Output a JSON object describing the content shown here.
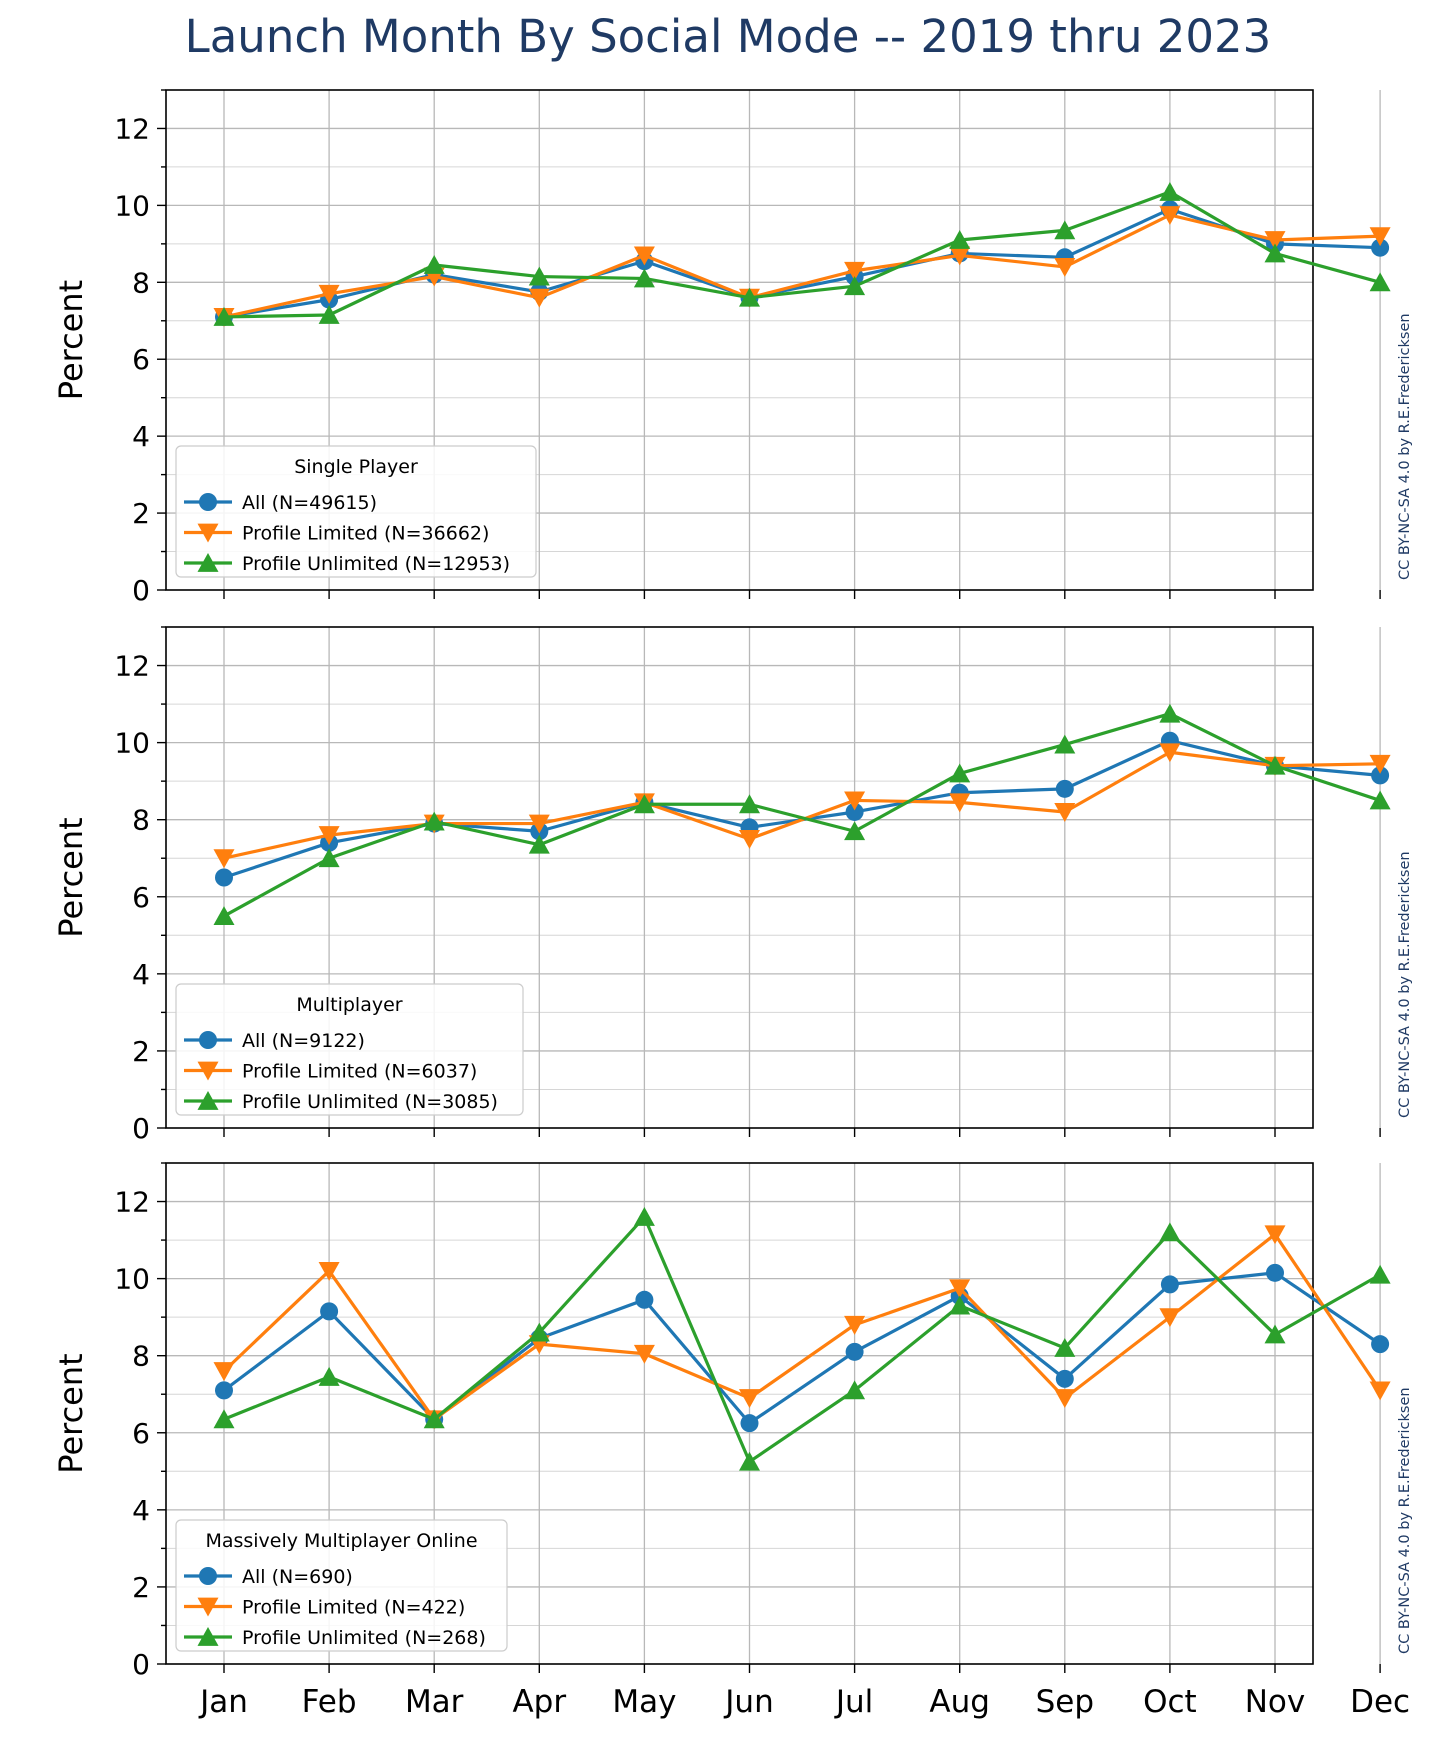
{
  "title": "Launch Month By Social Mode -- 2019 thru 2023",
  "chart_data": {
    "type": "line",
    "title": "Launch Month By Social Mode -- 2019 thru 2023",
    "ylabel": "Percent",
    "ylim": [
      0,
      13
    ],
    "yticks": [
      0,
      2,
      4,
      6,
      8,
      10,
      12
    ],
    "grid": true,
    "legend_placement": "bottom-left",
    "categories": [
      "Jan",
      "Feb",
      "Mar",
      "Apr",
      "May",
      "Jun",
      "Jul",
      "Aug",
      "Sep",
      "Oct",
      "Nov",
      "Dec"
    ],
    "colors": {
      "all": "#1f77b4",
      "limited": "#ff7f0e",
      "unlimited": "#2ca02c",
      "title": "#1f3a64",
      "credit": "#1f3a64"
    },
    "panels": [
      {
        "legend_title": "Single Player",
        "credit": "CC BY-NC-SA 4.0 by R.E.Fredericksen",
        "series": [
          {
            "name": "All (N=49615)",
            "marker": "circle",
            "color": "#1f77b4",
            "values": [
              7.1,
              7.55,
              8.2,
              7.75,
              8.55,
              7.6,
              8.15,
              8.75,
              8.65,
              9.9,
              9.0,
              8.9
            ]
          },
          {
            "name": "Profile Limited (N=36662)",
            "marker": "triangle-down",
            "color": "#ff7f0e",
            "values": [
              7.1,
              7.7,
              8.15,
              7.6,
              8.7,
              7.6,
              8.3,
              8.7,
              8.4,
              9.75,
              9.1,
              9.2
            ]
          },
          {
            "name": "Profile Unlimited (N=12953)",
            "marker": "triangle-up",
            "color": "#2ca02c",
            "values": [
              7.1,
              7.15,
              8.45,
              8.15,
              8.1,
              7.6,
              7.9,
              9.1,
              9.35,
              10.35,
              8.75,
              8.0
            ]
          }
        ]
      },
      {
        "legend_title": "Multiplayer",
        "credit": "CC BY-NC-SA 4.0 by R.E.Fredericksen",
        "series": [
          {
            "name": "All (N=9122)",
            "marker": "circle",
            "color": "#1f77b4",
            "values": [
              6.5,
              7.4,
              7.9,
              7.7,
              8.45,
              7.8,
              8.2,
              8.7,
              8.8,
              10.05,
              9.4,
              9.15
            ]
          },
          {
            "name": "Profile Limited (N=6037)",
            "marker": "triangle-down",
            "color": "#ff7f0e",
            "values": [
              7.0,
              7.6,
              7.9,
              7.9,
              8.45,
              7.5,
              8.5,
              8.45,
              8.2,
              9.75,
              9.4,
              9.45
            ]
          },
          {
            "name": "Profile Unlimited (N=3085)",
            "marker": "triangle-up",
            "color": "#2ca02c",
            "values": [
              5.5,
              7.0,
              7.95,
              7.35,
              8.4,
              8.4,
              7.7,
              9.2,
              9.95,
              10.75,
              9.4,
              8.5
            ]
          }
        ]
      },
      {
        "legend_title": "Massively Multiplayer Online",
        "credit": "CC BY-NC-SA 4.0 by R.E.Fredericksen",
        "series": [
          {
            "name": "All (N=690)",
            "marker": "circle",
            "color": "#1f77b4",
            "values": [
              7.1,
              9.15,
              6.35,
              8.45,
              9.45,
              6.25,
              8.1,
              9.55,
              7.4,
              9.85,
              10.15,
              8.3
            ]
          },
          {
            "name": "Profile Limited (N=422)",
            "marker": "triangle-down",
            "color": "#ff7f0e",
            "values": [
              7.6,
              10.2,
              6.35,
              8.3,
              8.05,
              6.9,
              8.8,
              9.75,
              6.9,
              9.0,
              11.15,
              7.1
            ]
          },
          {
            "name": "Profile Unlimited (N=268)",
            "marker": "triangle-up",
            "color": "#2ca02c",
            "values": [
              6.35,
              7.45,
              6.35,
              8.6,
              11.6,
              5.25,
              7.1,
              9.3,
              8.2,
              11.2,
              8.55,
              10.1
            ]
          }
        ]
      }
    ]
  }
}
